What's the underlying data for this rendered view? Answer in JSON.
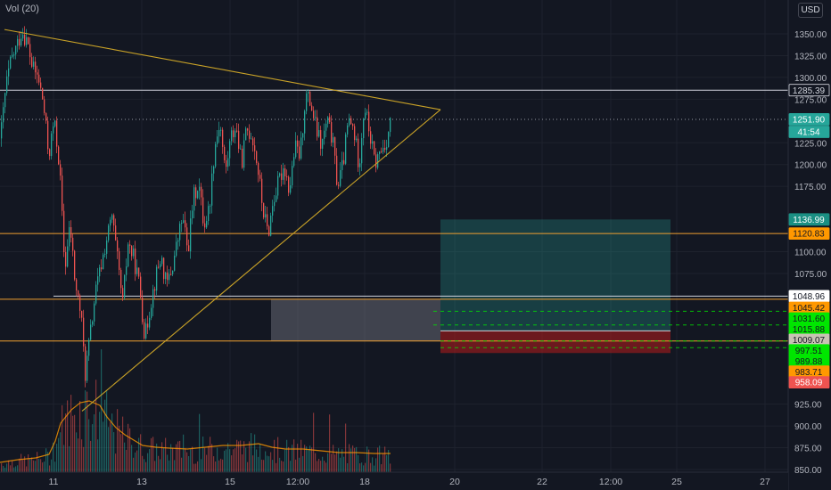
{
  "indicator_label": "Vol (20)",
  "currency_label": "USD",
  "colors": {
    "background": "#131722",
    "grid": "#1e222d",
    "up": "#26a69a",
    "down": "#ef5350",
    "trendline": "#c9a227",
    "hline_orange": "#f0a030",
    "hline_white": "#d1d4dc",
    "target_zone": "#26a69a",
    "stop_zone": "#b71c1c",
    "grey_zone": "#787b86",
    "volume_ma": "#ff9800"
  },
  "chart_data": {
    "type": "candlestick",
    "grid": true,
    "y_axis": {
      "position": "right",
      "ylim": [
        843,
        1377
      ],
      "ticks": [
        850,
        875,
        900,
        925,
        1075,
        1100,
        1175,
        1200,
        1225,
        1275,
        1300,
        1325,
        1350
      ]
    },
    "x_axis": {
      "ticks": [
        "11",
        "13",
        "15",
        "12:00",
        "18",
        "20",
        "22",
        "12:00",
        "25",
        "27"
      ]
    },
    "price_path": [
      [
        0,
        1230
      ],
      [
        6,
        1290
      ],
      [
        12,
        1320
      ],
      [
        18,
        1335
      ],
      [
        24,
        1355
      ],
      [
        30,
        1340
      ],
      [
        36,
        1310
      ],
      [
        42,
        1300
      ],
      [
        48,
        1270
      ],
      [
        54,
        1210
      ],
      [
        60,
        1250
      ],
      [
        66,
        1200
      ],
      [
        72,
        1080
      ],
      [
        78,
        1130
      ],
      [
        84,
        1060
      ],
      [
        90,
        1030
      ],
      [
        95,
        960
      ],
      [
        100,
        1000
      ],
      [
        106,
        1050
      ],
      [
        112,
        1080
      ],
      [
        118,
        1110
      ],
      [
        125,
        1140
      ],
      [
        131,
        1090
      ],
      [
        137,
        1040
      ],
      [
        143,
        1110
      ],
      [
        150,
        1090
      ],
      [
        156,
        1060
      ],
      [
        162,
        1000
      ],
      [
        168,
        1040
      ],
      [
        174,
        1070
      ],
      [
        180,
        1095
      ],
      [
        186,
        1060
      ],
      [
        192,
        1080
      ],
      [
        198,
        1110
      ],
      [
        204,
        1140
      ],
      [
        210,
        1100
      ],
      [
        216,
        1160
      ],
      [
        222,
        1180
      ],
      [
        228,
        1130
      ],
      [
        234,
        1150
      ],
      [
        240,
        1220
      ],
      [
        246,
        1250
      ],
      [
        252,
        1190
      ],
      [
        258,
        1230
      ],
      [
        264,
        1245
      ],
      [
        270,
        1200
      ],
      [
        276,
        1240
      ],
      [
        282,
        1235
      ],
      [
        288,
        1200
      ],
      [
        294,
        1150
      ],
      [
        300,
        1120
      ],
      [
        306,
        1160
      ],
      [
        312,
        1180
      ],
      [
        318,
        1200
      ],
      [
        324,
        1170
      ],
      [
        330,
        1220
      ],
      [
        336,
        1210
      ],
      [
        342,
        1280
      ],
      [
        348,
        1270
      ],
      [
        354,
        1240
      ],
      [
        360,
        1220
      ],
      [
        366,
        1250
      ],
      [
        372,
        1230
      ],
      [
        378,
        1175
      ],
      [
        384,
        1200
      ],
      [
        390,
        1250
      ],
      [
        396,
        1240
      ],
      [
        402,
        1200
      ],
      [
        408,
        1270
      ],
      [
        414,
        1235
      ],
      [
        420,
        1200
      ],
      [
        426,
        1215
      ],
      [
        432,
        1225
      ],
      [
        438,
        1251.9
      ]
    ],
    "volume_ma": [
      [
        0,
        11
      ],
      [
        20,
        14
      ],
      [
        40,
        16
      ],
      [
        55,
        20
      ],
      [
        62,
        35
      ],
      [
        68,
        55
      ],
      [
        80,
        70
      ],
      [
        90,
        78
      ],
      [
        100,
        80
      ],
      [
        112,
        75
      ],
      [
        120,
        62
      ],
      [
        130,
        50
      ],
      [
        140,
        42
      ],
      [
        150,
        36
      ],
      [
        160,
        30
      ],
      [
        175,
        28
      ],
      [
        190,
        27
      ],
      [
        210,
        26
      ],
      [
        230,
        28
      ],
      [
        250,
        30
      ],
      [
        270,
        30
      ],
      [
        290,
        32
      ],
      [
        305,
        28
      ],
      [
        320,
        26
      ],
      [
        340,
        26
      ],
      [
        360,
        24
      ],
      [
        380,
        22
      ],
      [
        400,
        22
      ],
      [
        420,
        21
      ],
      [
        438,
        21
      ]
    ],
    "trendlines": [
      {
        "from": [
          5,
          1355
        ],
        "to": [
          494,
          1263
        ]
      },
      {
        "from": [
          92,
          917
        ],
        "to": [
          494,
          1263
        ]
      }
    ],
    "horizontal_lines": [
      {
        "price": 1285.39,
        "color": "white",
        "x_start": 0
      },
      {
        "price": 1120.83,
        "color": "orange",
        "x_start": 0
      },
      {
        "price": 1048.96,
        "color": "white",
        "x_start": 60
      },
      {
        "price": 1045.42,
        "color": "orange",
        "x_start": 0
      },
      {
        "price": 1009.07,
        "color": "white",
        "x_start": 494,
        "x_end": 752
      },
      {
        "price": 997.51,
        "color": "orange",
        "x_start": 0
      }
    ],
    "dashed_lines": [
      {
        "price": 1031.6,
        "x_start": 486
      },
      {
        "price": 1015.88,
        "x_start": 486
      },
      {
        "price": 997.51,
        "x_start": 494
      },
      {
        "price": 989.88,
        "x_start": 494
      }
    ],
    "zones": [
      {
        "name": "target-zone",
        "x_start": 494,
        "x_end": 752,
        "top": 1136.99,
        "bottom": 1009.07,
        "color": "target"
      },
      {
        "name": "stop-zone",
        "x_start": 494,
        "x_end": 752,
        "top": 1009.07,
        "bottom": 983.71,
        "color": "stop"
      },
      {
        "name": "grey-zone",
        "x_start": 304,
        "x_end": 494,
        "top": 1045.42,
        "bottom": 997.51,
        "color": "grey"
      }
    ],
    "price_labels": [
      {
        "text": "1285.39",
        "price": 1285.39,
        "bg": "#131722",
        "fg": "#d1d4dc",
        "border": "#d1d4dc"
      },
      {
        "text": "1251.90",
        "price": 1251.9,
        "bg": "#26a69a",
        "fg": "#ffffff",
        "border": "#26a69a"
      },
      {
        "text": "1136.99",
        "price": 1136.99,
        "bg": "#1b8f83",
        "fg": "#ffffff",
        "border": "#1b8f83"
      },
      {
        "text": "1120.83",
        "price": 1120.83,
        "bg": "#ff9800",
        "fg": "#131722",
        "border": "#ff9800"
      },
      {
        "text": "1048.96",
        "price": 1048.96,
        "bg": "#ffffff",
        "fg": "#131722",
        "border": "#ffffff"
      },
      {
        "text": "1045.42",
        "price": 1035.5,
        "bg": "#ff9800",
        "fg": "#131722",
        "border": "#ff9800"
      },
      {
        "text": "1031.60",
        "price": 1023.3,
        "bg": "#00e600",
        "fg": "#131722",
        "border": "#00e600"
      },
      {
        "text": "1015.88",
        "price": 1011.1,
        "bg": "#00e600",
        "fg": "#131722",
        "border": "#00e600"
      },
      {
        "text": "1009.07",
        "price": 998.9,
        "bg": "#c8c3b4",
        "fg": "#131722",
        "border": "#c8c3b4"
      },
      {
        "text": "997.51",
        "price": 986.7,
        "bg": "#00e600",
        "fg": "#131722",
        "border": "#00e600"
      },
      {
        "text": "989.88",
        "price": 974.5,
        "bg": "#00e600",
        "fg": "#131722",
        "border": "#00e600"
      },
      {
        "text": "983.71",
        "price": 962.3,
        "bg": "#ff9800",
        "fg": "#131722",
        "border": "#ff9800"
      },
      {
        "text": "958.09",
        "price": 950.1,
        "bg": "#ef5350",
        "fg": "#ffffff",
        "border": "#ef5350"
      }
    ],
    "countdown_label": {
      "text": "41:54",
      "price": 1237.5,
      "bg": "#26a69a",
      "fg": "#ffffff"
    }
  }
}
